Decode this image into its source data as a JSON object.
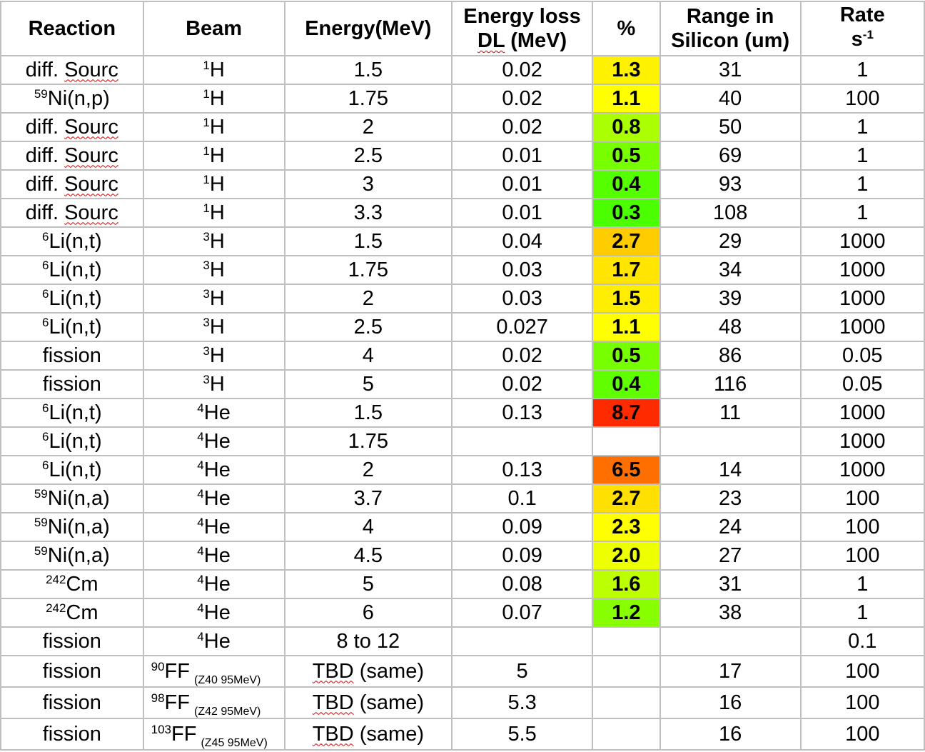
{
  "headers": {
    "reaction": "Reaction",
    "beam": "Beam",
    "energy": "Energy(MeV)",
    "dl_line1": "Energy loss",
    "dl_abbr": "DL",
    "dl_unit": " (MeV)",
    "pct": "%",
    "range_line1": "Range in",
    "range_line2": "Silicon (um)",
    "rate_line1": "Rate",
    "rate_base": "s",
    "rate_sup": "-1"
  },
  "rows": [
    {
      "rsup": "",
      "rtext": "diff. ",
      "rsp": "Sourc",
      "bsup": "1",
      "btext": "H",
      "bnote": "",
      "energy": "1.5",
      "esp": "",
      "dl": "0.02",
      "pct": "1.3",
      "color": "#fff200",
      "range": "31",
      "rate": "1"
    },
    {
      "rsup": "59",
      "rtext": "Ni(n,p)",
      "rsp": "",
      "bsup": "1",
      "btext": "H",
      "bnote": "",
      "energy": "1.75",
      "esp": "",
      "dl": "0.02",
      "pct": "1.1",
      "color": "#ffff00",
      "range": "40",
      "rate": "100"
    },
    {
      "rsup": "",
      "rtext": "diff. ",
      "rsp": "Sourc",
      "bsup": "1",
      "btext": "H",
      "bnote": "",
      "energy": "2",
      "esp": "",
      "dl": "0.02",
      "pct": "0.8",
      "color": "#aaff00",
      "range": "50",
      "rate": "1"
    },
    {
      "rsup": "",
      "rtext": "diff. ",
      "rsp": "Sourc",
      "bsup": "1",
      "btext": "H",
      "bnote": "",
      "energy": "2.5",
      "esp": "",
      "dl": "0.01",
      "pct": "0.5",
      "color": "#77ff00",
      "range": "69",
      "rate": "1"
    },
    {
      "rsup": "",
      "rtext": "diff. ",
      "rsp": "Sourc",
      "bsup": "1",
      "btext": "H",
      "bnote": "",
      "energy": "3",
      "esp": "",
      "dl": "0.01",
      "pct": "0.4",
      "color": "#55ff00",
      "range": "93",
      "rate": "1"
    },
    {
      "rsup": "",
      "rtext": "diff. ",
      "rsp": "Sourc",
      "bsup": "1",
      "btext": "H",
      "bnote": "",
      "energy": "3.3",
      "esp": "",
      "dl": "0.01",
      "pct": "0.3",
      "color": "#4cff00",
      "range": "108",
      "rate": "1"
    },
    {
      "rsup": "6",
      "rtext": "Li(n,t)",
      "rsp": "",
      "bsup": "3",
      "btext": "H",
      "bnote": "",
      "energy": "1.5",
      "esp": "",
      "dl": "0.04",
      "pct": "2.7",
      "color": "#ffcc00",
      "range": "29",
      "rate": "1000"
    },
    {
      "rsup": "6",
      "rtext": "Li(n,t)",
      "rsp": "",
      "bsup": "3",
      "btext": "H",
      "bnote": "",
      "energy": "1.75",
      "esp": "",
      "dl": "0.03",
      "pct": "1.7",
      "color": "#ffe500",
      "range": "34",
      "rate": "1000"
    },
    {
      "rsup": "6",
      "rtext": "Li(n,t)",
      "rsp": "",
      "bsup": "3",
      "btext": "H",
      "bnote": "",
      "energy": "2",
      "esp": "",
      "dl": "0.03",
      "pct": "1.5",
      "color": "#ffee00",
      "range": "39",
      "rate": "1000"
    },
    {
      "rsup": "6",
      "rtext": "Li(n,t)",
      "rsp": "",
      "bsup": "3",
      "btext": "H",
      "bnote": "",
      "energy": "2.5",
      "esp": "",
      "dl": "0.027",
      "pct": "1.1",
      "color": "#ffff00",
      "range": "48",
      "rate": "1000"
    },
    {
      "rsup": "",
      "rtext": "fission",
      "rsp": "",
      "bsup": "3",
      "btext": "H",
      "bnote": "",
      "energy": "4",
      "esp": "",
      "dl": "0.02",
      "pct": "0.5",
      "color": "#77ff00",
      "range": "86",
      "rate": "0.05"
    },
    {
      "rsup": "",
      "rtext": "fission",
      "rsp": "",
      "bsup": "3",
      "btext": "H",
      "bnote": "",
      "energy": "5",
      "esp": "",
      "dl": "0.02",
      "pct": "0.4",
      "color": "#5fff00",
      "range": "116",
      "rate": "0.05"
    },
    {
      "rsup": "6",
      "rtext": "Li(n,t)",
      "rsp": "",
      "bsup": "4",
      "btext": "He",
      "bnote": "",
      "energy": "1.5",
      "esp": "",
      "dl": "0.13",
      "pct": "8.7",
      "color": "#ff2a00",
      "range": "11",
      "rate": "1000"
    },
    {
      "rsup": "6",
      "rtext": "Li(n,t)",
      "rsp": "",
      "bsup": "4",
      "btext": "He",
      "bnote": "",
      "energy": "1.75",
      "esp": "",
      "dl": "",
      "pct": "",
      "color": "#ffffff",
      "range": "",
      "rate": "1000"
    },
    {
      "rsup": "6",
      "rtext": "Li(n,t)",
      "rsp": "",
      "bsup": "4",
      "btext": "He",
      "bnote": "",
      "energy": "2",
      "esp": "",
      "dl": "0.13",
      "pct": "6.5",
      "color": "#ff6f00",
      "range": "14",
      "rate": "1000"
    },
    {
      "rsup": "59",
      "rtext": "Ni(n,a)",
      "rsp": "",
      "bsup": "4",
      "btext": "He",
      "bnote": "",
      "energy": "3.7",
      "esp": "",
      "dl": "0.1",
      "pct": "2.7",
      "color": "#ffe000",
      "range": "23",
      "rate": "100"
    },
    {
      "rsup": "59",
      "rtext": "Ni(n,a)",
      "rsp": "",
      "bsup": "4",
      "btext": "He",
      "bnote": "",
      "energy": "4",
      "esp": "",
      "dl": "0.09",
      "pct": "2.3",
      "color": "#ffff00",
      "range": "24",
      "rate": "100"
    },
    {
      "rsup": "59",
      "rtext": "Ni(n,a)",
      "rsp": "",
      "bsup": "4",
      "btext": "He",
      "bnote": "",
      "energy": "4.5",
      "esp": "",
      "dl": "0.09",
      "pct": "2.0",
      "color": "#eeff00",
      "range": "27",
      "rate": "100"
    },
    {
      "rsup": "242",
      "rtext": "Cm",
      "rsp": "",
      "bsup": "4",
      "btext": "He",
      "bnote": "",
      "energy": "5",
      "esp": "",
      "dl": "0.08",
      "pct": "1.6",
      "color": "#bbff00",
      "range": "31",
      "rate": "1"
    },
    {
      "rsup": "242",
      "rtext": "Cm",
      "rsp": "",
      "bsup": "4",
      "btext": "He",
      "bnote": "",
      "energy": "6",
      "esp": "",
      "dl": "0.07",
      "pct": "1.2",
      "color": "#88ff00",
      "range": "38",
      "rate": "1"
    },
    {
      "rsup": "",
      "rtext": "fission",
      "rsp": "",
      "bsup": "4",
      "btext": "He",
      "bnote": "",
      "energy": "8 to 12",
      "esp": "",
      "dl": "",
      "pct": "",
      "color": "#ffffff",
      "range": "",
      "rate": "0.1"
    },
    {
      "rsup": "",
      "rtext": "fission",
      "rsp": "",
      "bsup": "90",
      "btext": "FF",
      "bnote": "(Z40 95MeV)",
      "energy": " (same)",
      "esp": "TBD",
      "dl": "5",
      "pct": "",
      "color": "#ffffff",
      "range": "17",
      "rate": "100"
    },
    {
      "rsup": "",
      "rtext": "fission",
      "rsp": "",
      "bsup": "98",
      "btext": "FF",
      "bnote": "(Z42 95MeV)",
      "energy": " (same)",
      "esp": "TBD",
      "dl": "5.3",
      "pct": "",
      "color": "#ffffff",
      "range": "16",
      "rate": "100"
    },
    {
      "rsup": "",
      "rtext": "fission",
      "rsp": "",
      "bsup": "103",
      "btext": "FF",
      "bnote": "(Z45 95MeV)",
      "energy": " (same)",
      "esp": "TBD",
      "dl": "5.5",
      "pct": "",
      "color": "#ffffff",
      "range": "16",
      "rate": "100"
    }
  ]
}
